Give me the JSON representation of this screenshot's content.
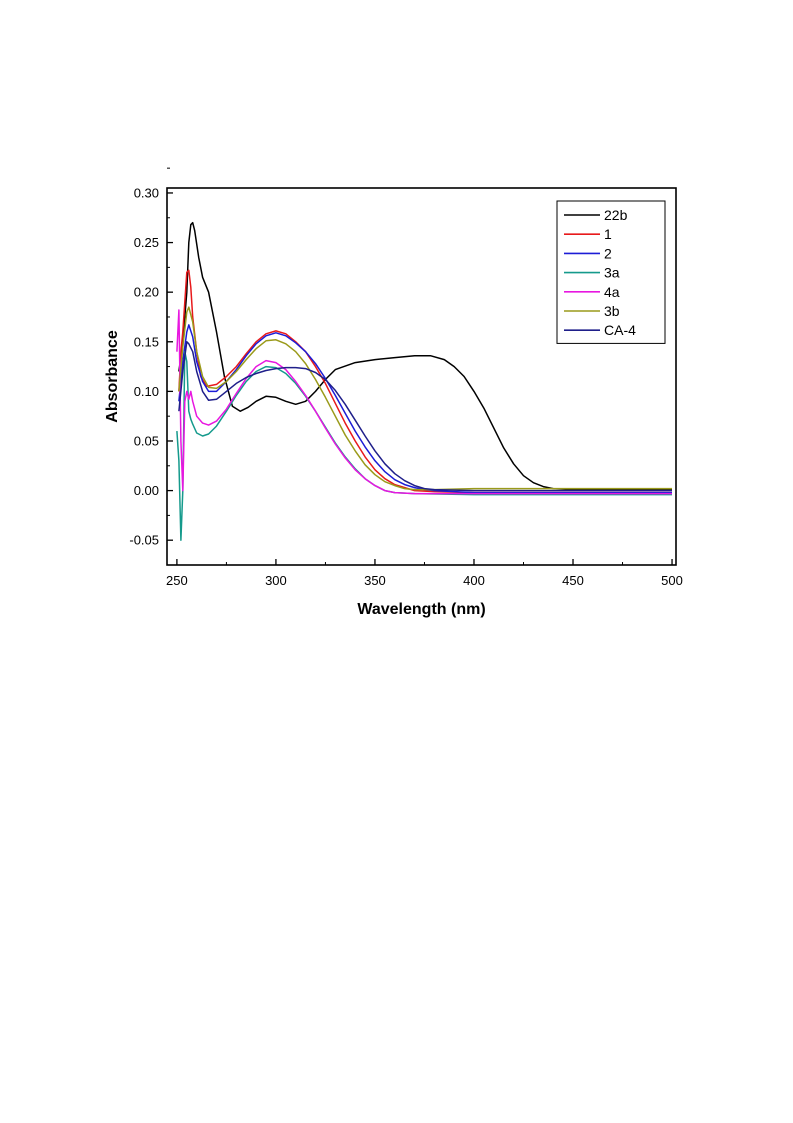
{
  "chart_data": {
    "type": "line",
    "title": "",
    "xlabel": "Wavelength (nm)",
    "ylabel": "Absorbance",
    "xlim": [
      245,
      502
    ],
    "ylim": [
      -0.075,
      0.305
    ],
    "xticks": [
      250,
      300,
      350,
      400,
      450,
      500
    ],
    "xtick_labels": [
      "250",
      "300",
      "350",
      "400",
      "450",
      "500"
    ],
    "yticks": [
      -0.05,
      0.0,
      0.05,
      0.1,
      0.15,
      0.2,
      0.25,
      0.3
    ],
    "ytick_labels": [
      "-0.05",
      "0.00",
      "0.05",
      "0.10",
      "0.15",
      "0.20",
      "0.25",
      "0.30"
    ],
    "grid": false,
    "legend_position": "top-right",
    "series": [
      {
        "name": "22b",
        "color": "#000000",
        "points": [
          [
            251,
            0.12
          ],
          [
            253,
            0.15
          ],
          [
            255,
            0.2
          ],
          [
            256,
            0.25
          ],
          [
            257,
            0.268
          ],
          [
            258,
            0.27
          ],
          [
            259,
            0.262
          ],
          [
            261,
            0.235
          ],
          [
            263,
            0.215
          ],
          [
            266,
            0.2
          ],
          [
            270,
            0.16
          ],
          [
            274,
            0.115
          ],
          [
            278,
            0.085
          ],
          [
            282,
            0.08
          ],
          [
            286,
            0.084
          ],
          [
            290,
            0.09
          ],
          [
            295,
            0.095
          ],
          [
            300,
            0.094
          ],
          [
            305,
            0.09
          ],
          [
            310,
            0.087
          ],
          [
            315,
            0.09
          ],
          [
            320,
            0.1
          ],
          [
            325,
            0.112
          ],
          [
            330,
            0.122
          ],
          [
            340,
            0.129
          ],
          [
            350,
            0.132
          ],
          [
            360,
            0.134
          ],
          [
            370,
            0.136
          ],
          [
            378,
            0.136
          ],
          [
            385,
            0.132
          ],
          [
            390,
            0.125
          ],
          [
            395,
            0.115
          ],
          [
            400,
            0.1
          ],
          [
            405,
            0.083
          ],
          [
            410,
            0.063
          ],
          [
            415,
            0.043
          ],
          [
            420,
            0.027
          ],
          [
            425,
            0.015
          ],
          [
            430,
            0.008
          ],
          [
            435,
            0.004
          ],
          [
            440,
            0.002
          ],
          [
            450,
            0.001
          ],
          [
            470,
            0.001
          ],
          [
            500,
            0.001
          ]
        ]
      },
      {
        "name": "1",
        "color": "#e8191b",
        "points": [
          [
            251,
            0.1
          ],
          [
            252,
            0.14
          ],
          [
            253,
            0.16
          ],
          [
            254,
            0.19
          ],
          [
            255,
            0.22
          ],
          [
            256,
            0.222
          ],
          [
            257,
            0.205
          ],
          [
            258,
            0.175
          ],
          [
            260,
            0.14
          ],
          [
            262,
            0.115
          ],
          [
            265,
            0.105
          ],
          [
            270,
            0.107
          ],
          [
            275,
            0.115
          ],
          [
            280,
            0.125
          ],
          [
            285,
            0.138
          ],
          [
            290,
            0.15
          ],
          [
            295,
            0.158
          ],
          [
            300,
            0.161
          ],
          [
            305,
            0.158
          ],
          [
            310,
            0.15
          ],
          [
            315,
            0.14
          ],
          [
            320,
            0.125
          ],
          [
            325,
            0.108
          ],
          [
            330,
            0.088
          ],
          [
            335,
            0.068
          ],
          [
            340,
            0.05
          ],
          [
            345,
            0.034
          ],
          [
            350,
            0.021
          ],
          [
            355,
            0.012
          ],
          [
            360,
            0.006
          ],
          [
            365,
            0.003
          ],
          [
            370,
            0.0
          ],
          [
            380,
            -0.001
          ],
          [
            400,
            -0.002
          ],
          [
            450,
            -0.002
          ],
          [
            500,
            -0.002
          ]
        ]
      },
      {
        "name": "2",
        "color": "#1c1cd6",
        "points": [
          [
            251,
            0.09
          ],
          [
            253,
            0.13
          ],
          [
            255,
            0.16
          ],
          [
            256,
            0.167
          ],
          [
            258,
            0.155
          ],
          [
            260,
            0.13
          ],
          [
            263,
            0.11
          ],
          [
            266,
            0.1
          ],
          [
            270,
            0.1
          ],
          [
            275,
            0.11
          ],
          [
            280,
            0.122
          ],
          [
            285,
            0.136
          ],
          [
            290,
            0.148
          ],
          [
            295,
            0.156
          ],
          [
            300,
            0.159
          ],
          [
            305,
            0.156
          ],
          [
            310,
            0.149
          ],
          [
            315,
            0.14
          ],
          [
            320,
            0.128
          ],
          [
            325,
            0.113
          ],
          [
            330,
            0.096
          ],
          [
            335,
            0.078
          ],
          [
            340,
            0.06
          ],
          [
            345,
            0.044
          ],
          [
            350,
            0.03
          ],
          [
            355,
            0.019
          ],
          [
            360,
            0.011
          ],
          [
            365,
            0.006
          ],
          [
            370,
            0.003
          ],
          [
            375,
            0.001
          ],
          [
            380,
            0.0
          ],
          [
            400,
            -0.002
          ],
          [
            450,
            -0.002
          ],
          [
            500,
            -0.002
          ]
        ]
      },
      {
        "name": "3a",
        "color": "#159a8c",
        "points": [
          [
            250,
            0.06
          ],
          [
            251,
            0.03
          ],
          [
            252,
            -0.05
          ],
          [
            253,
            0.0
          ],
          [
            254,
            0.14
          ],
          [
            255,
            0.13
          ],
          [
            256,
            0.08
          ],
          [
            257,
            0.072
          ],
          [
            258,
            0.067
          ],
          [
            260,
            0.058
          ],
          [
            263,
            0.055
          ],
          [
            266,
            0.057
          ],
          [
            270,
            0.065
          ],
          [
            275,
            0.08
          ],
          [
            280,
            0.096
          ],
          [
            285,
            0.11
          ],
          [
            290,
            0.12
          ],
          [
            295,
            0.125
          ],
          [
            300,
            0.124
          ],
          [
            305,
            0.118
          ],
          [
            310,
            0.108
          ],
          [
            315,
            0.095
          ],
          [
            320,
            0.08
          ],
          [
            325,
            0.064
          ],
          [
            330,
            0.048
          ],
          [
            335,
            0.034
          ],
          [
            340,
            0.022
          ],
          [
            345,
            0.012
          ],
          [
            350,
            0.005
          ],
          [
            355,
            0.0
          ],
          [
            360,
            -0.002
          ],
          [
            370,
            -0.003
          ],
          [
            400,
            -0.004
          ],
          [
            450,
            -0.004
          ],
          [
            500,
            -0.004
          ]
        ]
      },
      {
        "name": "4a",
        "color": "#e817e0",
        "points": [
          [
            250,
            0.14
          ],
          [
            251,
            0.182
          ],
          [
            252,
            0.05
          ],
          [
            253,
            0.0
          ],
          [
            254,
            0.09
          ],
          [
            255,
            0.1
          ],
          [
            256,
            0.092
          ],
          [
            257,
            0.1
          ],
          [
            258,
            0.09
          ],
          [
            260,
            0.075
          ],
          [
            263,
            0.068
          ],
          [
            266,
            0.066
          ],
          [
            270,
            0.07
          ],
          [
            275,
            0.082
          ],
          [
            280,
            0.098
          ],
          [
            285,
            0.113
          ],
          [
            290,
            0.125
          ],
          [
            295,
            0.131
          ],
          [
            300,
            0.129
          ],
          [
            305,
            0.122
          ],
          [
            310,
            0.11
          ],
          [
            315,
            0.096
          ],
          [
            320,
            0.08
          ],
          [
            325,
            0.063
          ],
          [
            330,
            0.047
          ],
          [
            335,
            0.033
          ],
          [
            340,
            0.021
          ],
          [
            345,
            0.012
          ],
          [
            350,
            0.005
          ],
          [
            355,
            0.0
          ],
          [
            360,
            -0.002
          ],
          [
            370,
            -0.003
          ],
          [
            400,
            -0.003
          ],
          [
            450,
            -0.003
          ],
          [
            500,
            -0.003
          ]
        ]
      },
      {
        "name": "3b",
        "color": "#9a9a1a",
        "points": [
          [
            251,
            0.1
          ],
          [
            253,
            0.145
          ],
          [
            255,
            0.18
          ],
          [
            256,
            0.185
          ],
          [
            258,
            0.17
          ],
          [
            260,
            0.14
          ],
          [
            263,
            0.115
          ],
          [
            266,
            0.104
          ],
          [
            270,
            0.103
          ],
          [
            275,
            0.11
          ],
          [
            280,
            0.12
          ],
          [
            285,
            0.132
          ],
          [
            290,
            0.143
          ],
          [
            295,
            0.151
          ],
          [
            300,
            0.152
          ],
          [
            305,
            0.148
          ],
          [
            310,
            0.14
          ],
          [
            315,
            0.128
          ],
          [
            320,
            0.112
          ],
          [
            325,
            0.094
          ],
          [
            330,
            0.075
          ],
          [
            335,
            0.056
          ],
          [
            340,
            0.04
          ],
          [
            345,
            0.026
          ],
          [
            350,
            0.016
          ],
          [
            355,
            0.009
          ],
          [
            360,
            0.005
          ],
          [
            365,
            0.002
          ],
          [
            370,
            0.001
          ],
          [
            380,
            0.001
          ],
          [
            400,
            0.002
          ],
          [
            450,
            0.002
          ],
          [
            500,
            0.002
          ]
        ]
      },
      {
        "name": "CA-4",
        "color": "#1f1f8a",
        "points": [
          [
            251,
            0.08
          ],
          [
            253,
            0.12
          ],
          [
            255,
            0.15
          ],
          [
            256,
            0.148
          ],
          [
            258,
            0.14
          ],
          [
            260,
            0.12
          ],
          [
            263,
            0.1
          ],
          [
            266,
            0.091
          ],
          [
            270,
            0.092
          ],
          [
            275,
            0.1
          ],
          [
            280,
            0.108
          ],
          [
            285,
            0.114
          ],
          [
            290,
            0.118
          ],
          [
            295,
            0.121
          ],
          [
            300,
            0.123
          ],
          [
            305,
            0.124
          ],
          [
            310,
            0.124
          ],
          [
            315,
            0.123
          ],
          [
            320,
            0.119
          ],
          [
            325,
            0.112
          ],
          [
            330,
            0.101
          ],
          [
            335,
            0.087
          ],
          [
            340,
            0.071
          ],
          [
            345,
            0.055
          ],
          [
            350,
            0.04
          ],
          [
            355,
            0.027
          ],
          [
            360,
            0.017
          ],
          [
            365,
            0.01
          ],
          [
            370,
            0.005
          ],
          [
            375,
            0.002
          ],
          [
            380,
            0.001
          ],
          [
            400,
            0.0
          ],
          [
            450,
            0.0
          ],
          [
            500,
            0.0
          ]
        ]
      }
    ]
  }
}
